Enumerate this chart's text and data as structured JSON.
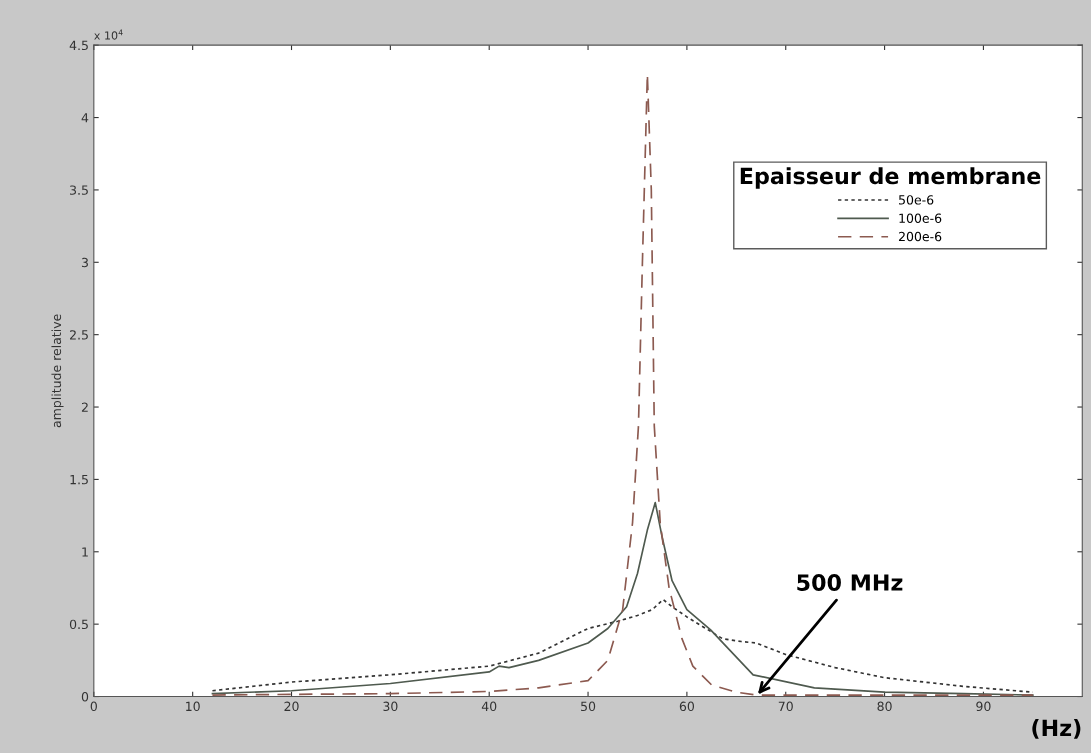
{
  "chart_data": {
    "type": "line",
    "xlabel": "(Hz)",
    "ylabel": "amplitude relative",
    "legend_title": "Epaisseur de membrane",
    "xlim": [
      0,
      100
    ],
    "xticks": [
      0,
      10,
      20,
      30,
      40,
      50,
      60,
      70,
      80,
      90
    ],
    "ylim": [
      0,
      4.5
    ],
    "yticks": [
      0,
      0.5,
      1,
      1.5,
      2,
      2.5,
      3,
      3.5,
      4,
      4.5
    ],
    "legend": "upper right",
    "grid": false,
    "annotations": [
      "x 10$^{4}$",
      {
        "text": "500 MHz",
        "x": 67,
        "y": 0
      }
    ],
    "series": [
      {
        "name": "50e-6",
        "color": "#333333",
        "line_style": "dotted",
        "x": [
          12,
          20,
          30,
          40,
          45,
          50,
          53,
          55,
          56.5,
          57.6,
          58.5,
          60,
          63.6,
          65.5,
          67,
          70,
          75,
          80,
          88,
          95
        ],
        "values": [
          0.04,
          0.1,
          0.15,
          0.21,
          0.3,
          0.47,
          0.52,
          0.56,
          0.6,
          0.67,
          0.62,
          0.55,
          0.4,
          0.38,
          0.37,
          0.29,
          0.2,
          0.13,
          0.07,
          0.03
        ]
      },
      {
        "name": "100e-6",
        "color": "#4f5a4f",
        "line_style": "solid",
        "x": [
          12,
          20,
          30,
          40,
          41,
          42,
          45,
          50,
          52,
          53.9,
          55,
          56,
          56.8,
          57.5,
          58.5,
          60,
          62.4,
          66.7,
          72.9,
          80,
          88,
          95
        ],
        "values": [
          0.02,
          0.04,
          0.09,
          0.17,
          0.21,
          0.2,
          0.25,
          0.37,
          0.47,
          0.62,
          0.85,
          1.15,
          1.34,
          1.1,
          0.8,
          0.6,
          0.46,
          0.15,
          0.06,
          0.03,
          0.02,
          0.01
        ]
      },
      {
        "name": "200e-6",
        "color": "#8c5a50",
        "line_style": "dashed",
        "x": [
          12,
          20,
          30,
          40,
          45,
          50,
          52,
          53.5,
          54.5,
          55.1,
          55.5,
          56,
          56.4,
          56.7,
          57.3,
          58.2,
          59.5,
          60.6,
          62.5,
          65,
          67,
          75,
          85,
          95
        ],
        "values": [
          0.01,
          0.015,
          0.02,
          0.035,
          0.06,
          0.11,
          0.25,
          0.6,
          1.2,
          1.87,
          3.0,
          4.3,
          3.5,
          1.87,
          1.2,
          0.75,
          0.4,
          0.21,
          0.08,
          0.03,
          0.01,
          0.01,
          0.01,
          0.01
        ]
      }
    ]
  }
}
